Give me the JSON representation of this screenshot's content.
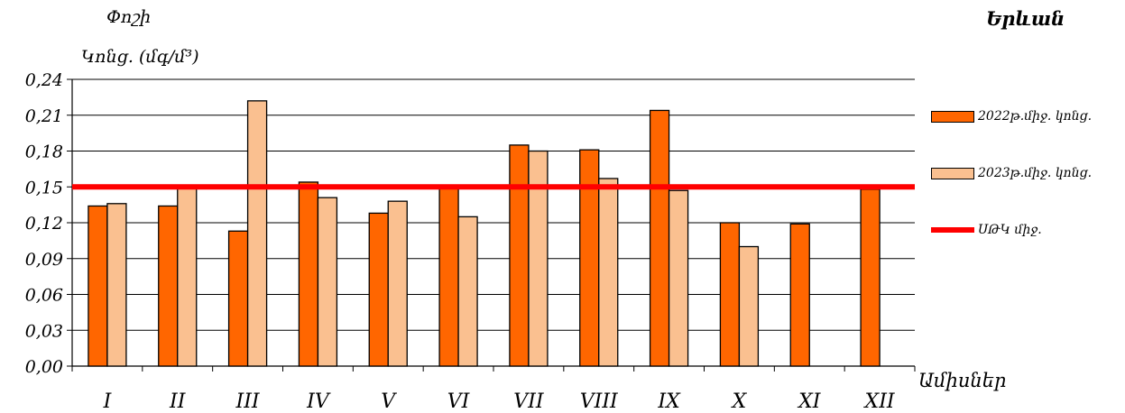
{
  "header": {
    "city": "Երևան",
    "y_title_line1": "Փոշի",
    "y_title_line2": "Կոնց. (մգ/մ³)",
    "x_title": "Ամիսներ"
  },
  "legend": {
    "items": [
      {
        "label": "2022թ.միջ. կոնց.",
        "color": "#FF6600",
        "kind": "bar"
      },
      {
        "label": "2023թ.միջ. կոնց.",
        "color": "#FAC090",
        "kind": "bar"
      },
      {
        "label": "ՍԹԿ միջ.",
        "color": "#FF0000",
        "kind": "line"
      }
    ]
  },
  "chart_data": {
    "type": "bar",
    "categories": [
      "I",
      "II",
      "III",
      "IV",
      "V",
      "VI",
      "VII",
      "VIII",
      "IX",
      "X",
      "XI",
      "XII"
    ],
    "series": [
      {
        "name": "2022թ.միջ. կոնց.",
        "color": "#FF6600",
        "values": [
          0.134,
          0.134,
          0.113,
          0.154,
          0.128,
          0.15,
          0.185,
          0.181,
          0.214,
          0.12,
          0.119,
          0.148
        ]
      },
      {
        "name": "2023թ.միջ. կոնց.",
        "color": "#FAC090",
        "values": [
          0.136,
          0.15,
          0.222,
          0.141,
          0.138,
          0.125,
          0.18,
          0.157,
          0.147,
          0.1,
          null,
          null
        ]
      }
    ],
    "reference_line": {
      "name": "ՍԹԿ միջ.",
      "value": 0.15,
      "color": "#FF0000"
    },
    "ylim": [
      0,
      0.24
    ],
    "yticks": [
      "0,00",
      "0,03",
      "0,06",
      "0,09",
      "0,12",
      "0,15",
      "0,18",
      "0,21",
      "0,24"
    ],
    "ytick_values": [
      0,
      0.03,
      0.06,
      0.09,
      0.12,
      0.15,
      0.18,
      0.21,
      0.24
    ],
    "grid": true,
    "legend_position": "right"
  }
}
